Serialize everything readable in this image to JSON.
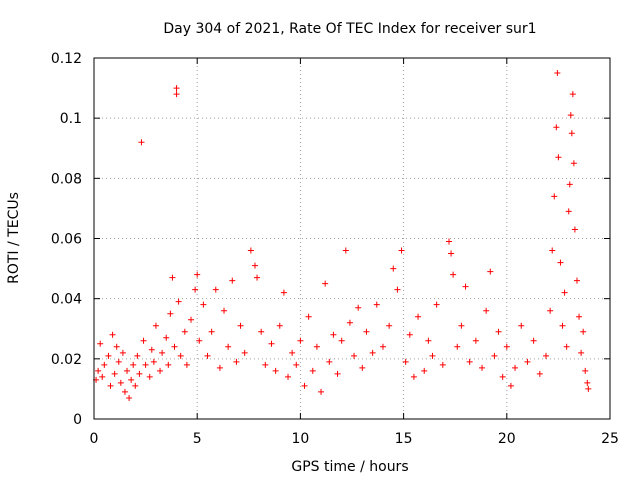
{
  "chart_data": {
    "type": "scatter",
    "title": "Day 304 of 2021, Rate Of TEC Index for receiver sur1",
    "xlabel": "GPS time / hours",
    "ylabel": "ROTI / TECUs",
    "xlim": [
      0,
      25
    ],
    "ylim": [
      0,
      0.12
    ],
    "xticks": [
      0,
      5,
      10,
      15,
      20,
      25
    ],
    "xtick_labels": [
      "0",
      "5",
      "10",
      "15",
      "20",
      "25"
    ],
    "yticks": [
      0,
      0.02,
      0.04,
      0.06,
      0.08,
      0.1,
      0.12
    ],
    "ytick_labels": [
      "0",
      "0.02",
      "0.04",
      "0.06",
      "0.08",
      "0.1",
      "0.12"
    ],
    "grid": true,
    "marker": "+",
    "color": "#ff0000",
    "series": [
      {
        "name": "ROTI",
        "points": [
          [
            0.1,
            0.013
          ],
          [
            0.2,
            0.016
          ],
          [
            0.3,
            0.025
          ],
          [
            0.4,
            0.014
          ],
          [
            0.5,
            0.018
          ],
          [
            0.7,
            0.021
          ],
          [
            0.8,
            0.011
          ],
          [
            0.9,
            0.028
          ],
          [
            1.0,
            0.015
          ],
          [
            1.1,
            0.024
          ],
          [
            1.2,
            0.019
          ],
          [
            1.3,
            0.012
          ],
          [
            1.4,
            0.022
          ],
          [
            1.5,
            0.009
          ],
          [
            1.6,
            0.016
          ],
          [
            1.7,
            0.007
          ],
          [
            1.8,
            0.013
          ],
          [
            1.9,
            0.018
          ],
          [
            2.0,
            0.011
          ],
          [
            2.1,
            0.021
          ],
          [
            2.2,
            0.015
          ],
          [
            2.3,
            0.092
          ],
          [
            2.4,
            0.026
          ],
          [
            2.5,
            0.018
          ],
          [
            2.7,
            0.014
          ],
          [
            2.8,
            0.023
          ],
          [
            2.9,
            0.019
          ],
          [
            3.0,
            0.031
          ],
          [
            3.2,
            0.016
          ],
          [
            3.3,
            0.022
          ],
          [
            3.5,
            0.027
          ],
          [
            3.6,
            0.018
          ],
          [
            3.7,
            0.035
          ],
          [
            3.8,
            0.047
          ],
          [
            3.9,
            0.024
          ],
          [
            4.0,
            0.108
          ],
          [
            4.0,
            0.11
          ],
          [
            4.1,
            0.039
          ],
          [
            4.2,
            0.021
          ],
          [
            4.4,
            0.029
          ],
          [
            4.5,
            0.018
          ],
          [
            4.7,
            0.033
          ],
          [
            4.9,
            0.043
          ],
          [
            5.0,
            0.048
          ],
          [
            5.1,
            0.026
          ],
          [
            5.3,
            0.038
          ],
          [
            5.5,
            0.021
          ],
          [
            5.7,
            0.029
          ],
          [
            5.9,
            0.043
          ],
          [
            6.1,
            0.017
          ],
          [
            6.3,
            0.036
          ],
          [
            6.5,
            0.024
          ],
          [
            6.7,
            0.046
          ],
          [
            6.9,
            0.019
          ],
          [
            7.1,
            0.031
          ],
          [
            7.3,
            0.022
          ],
          [
            7.6,
            0.056
          ],
          [
            7.8,
            0.051
          ],
          [
            7.9,
            0.047
          ],
          [
            8.1,
            0.029
          ],
          [
            8.3,
            0.018
          ],
          [
            8.6,
            0.025
          ],
          [
            8.8,
            0.016
          ],
          [
            9.0,
            0.031
          ],
          [
            9.2,
            0.042
          ],
          [
            9.4,
            0.014
          ],
          [
            9.6,
            0.022
          ],
          [
            9.8,
            0.018
          ],
          [
            10.0,
            0.026
          ],
          [
            10.2,
            0.011
          ],
          [
            10.4,
            0.034
          ],
          [
            10.6,
            0.016
          ],
          [
            10.8,
            0.024
          ],
          [
            11.0,
            0.009
          ],
          [
            11.2,
            0.045
          ],
          [
            11.4,
            0.019
          ],
          [
            11.6,
            0.028
          ],
          [
            11.8,
            0.015
          ],
          [
            12.0,
            0.026
          ],
          [
            12.2,
            0.056
          ],
          [
            12.4,
            0.032
          ],
          [
            12.6,
            0.021
          ],
          [
            12.8,
            0.037
          ],
          [
            13.0,
            0.017
          ],
          [
            13.2,
            0.029
          ],
          [
            13.5,
            0.022
          ],
          [
            13.7,
            0.038
          ],
          [
            14.0,
            0.024
          ],
          [
            14.3,
            0.031
          ],
          [
            14.5,
            0.05
          ],
          [
            14.7,
            0.043
          ],
          [
            14.9,
            0.056
          ],
          [
            15.1,
            0.019
          ],
          [
            15.3,
            0.028
          ],
          [
            15.5,
            0.014
          ],
          [
            15.7,
            0.034
          ],
          [
            16.0,
            0.016
          ],
          [
            16.2,
            0.026
          ],
          [
            16.4,
            0.021
          ],
          [
            16.6,
            0.038
          ],
          [
            16.9,
            0.018
          ],
          [
            17.2,
            0.059
          ],
          [
            17.3,
            0.055
          ],
          [
            17.4,
            0.048
          ],
          [
            17.6,
            0.024
          ],
          [
            17.8,
            0.031
          ],
          [
            18.0,
            0.044
          ],
          [
            18.2,
            0.019
          ],
          [
            18.5,
            0.026
          ],
          [
            18.8,
            0.017
          ],
          [
            19.0,
            0.036
          ],
          [
            19.2,
            0.049
          ],
          [
            19.4,
            0.021
          ],
          [
            19.6,
            0.029
          ],
          [
            19.8,
            0.014
          ],
          [
            20.0,
            0.024
          ],
          [
            20.2,
            0.011
          ],
          [
            20.4,
            0.017
          ],
          [
            20.7,
            0.031
          ],
          [
            21.0,
            0.019
          ],
          [
            21.3,
            0.026
          ],
          [
            21.6,
            0.015
          ],
          [
            21.9,
            0.021
          ],
          [
            22.1,
            0.036
          ],
          [
            22.2,
            0.056
          ],
          [
            22.3,
            0.074
          ],
          [
            22.4,
            0.097
          ],
          [
            22.45,
            0.115
          ],
          [
            22.5,
            0.087
          ],
          [
            22.6,
            0.052
          ],
          [
            22.7,
            0.031
          ],
          [
            22.8,
            0.042
          ],
          [
            22.9,
            0.024
          ],
          [
            23.0,
            0.069
          ],
          [
            23.05,
            0.078
          ],
          [
            23.1,
            0.101
          ],
          [
            23.15,
            0.095
          ],
          [
            23.2,
            0.108
          ],
          [
            23.25,
            0.085
          ],
          [
            23.3,
            0.063
          ],
          [
            23.4,
            0.046
          ],
          [
            23.5,
            0.034
          ],
          [
            23.6,
            0.022
          ],
          [
            23.7,
            0.029
          ],
          [
            23.8,
            0.016
          ],
          [
            23.9,
            0.012
          ],
          [
            23.95,
            0.01
          ]
        ]
      }
    ]
  }
}
